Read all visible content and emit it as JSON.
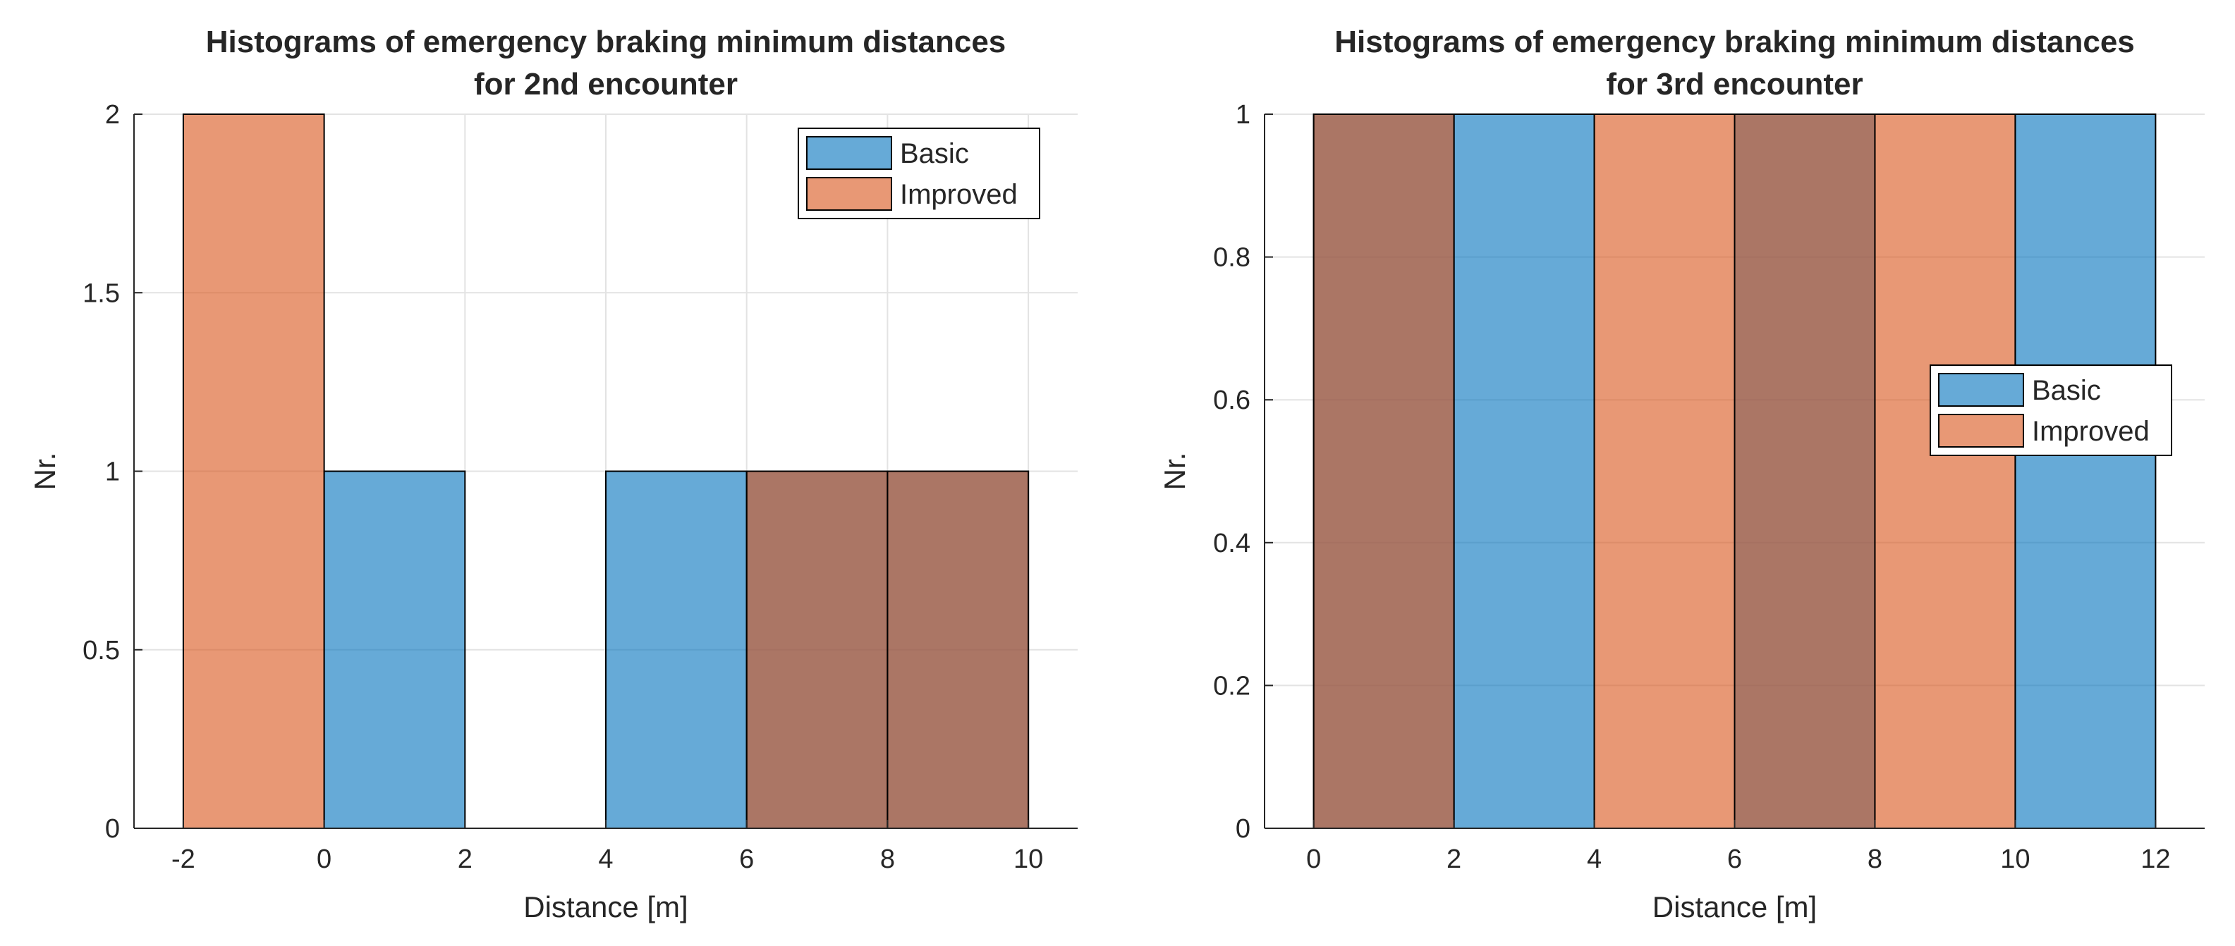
{
  "colors": {
    "basic": "#0072BD",
    "improved": "#D95319",
    "bar_opacity": 0.6,
    "grid": "#e3e3e3",
    "axis": "#262626"
  },
  "chart_data": [
    {
      "type": "bar",
      "title_line1": "Histograms of emergency braking minimum distances",
      "title_line2": "for 2nd encounter",
      "xlabel": "Distance [m]",
      "ylabel": "Nr.",
      "xlim": [
        -2.7,
        10.7
      ],
      "ylim": [
        0,
        2
      ],
      "xticks": [
        -2,
        0,
        2,
        4,
        6,
        8,
        10
      ],
      "yticks": [
        0,
        0.5,
        1,
        1.5,
        2
      ],
      "ytick_labels": [
        "0",
        "0.5",
        "1",
        "1.5",
        "2"
      ],
      "grid": true,
      "legend_position": "top-right",
      "series": [
        {
          "name": "Basic",
          "color_key": "basic",
          "bin_edges": [
            0,
            2,
            4,
            6,
            8,
            10
          ],
          "counts": [
            1,
            0,
            1,
            1,
            1
          ]
        },
        {
          "name": "Improved",
          "color_key": "improved",
          "bin_edges": [
            -2,
            0,
            2,
            4,
            6,
            8,
            10
          ],
          "counts": [
            2,
            0,
            0,
            0,
            1,
            1
          ]
        }
      ]
    },
    {
      "type": "bar",
      "title_line1": "Histograms of emergency braking minimum distances",
      "title_line2": "for 3rd encounter",
      "xlabel": "Distance [m]",
      "ylabel": "Nr.",
      "xlim": [
        -0.7,
        12.7
      ],
      "ylim": [
        0,
        1
      ],
      "xticks": [
        0,
        2,
        4,
        6,
        8,
        10,
        12
      ],
      "yticks": [
        0,
        0.2,
        0.4,
        0.6,
        0.8,
        1
      ],
      "ytick_labels": [
        "0",
        "0.2",
        "0.4",
        "0.6",
        "0.8",
        "1"
      ],
      "grid": true,
      "legend_position": "right",
      "series": [
        {
          "name": "Basic",
          "color_key": "basic",
          "bin_edges": [
            0,
            2,
            4,
            6,
            8,
            10,
            12
          ],
          "counts": [
            1,
            1,
            0,
            1,
            0,
            1
          ]
        },
        {
          "name": "Improved",
          "color_key": "improved",
          "bin_edges": [
            0,
            2,
            4,
            6,
            8,
            10
          ],
          "counts": [
            1,
            0,
            1,
            1,
            1
          ]
        }
      ]
    }
  ]
}
